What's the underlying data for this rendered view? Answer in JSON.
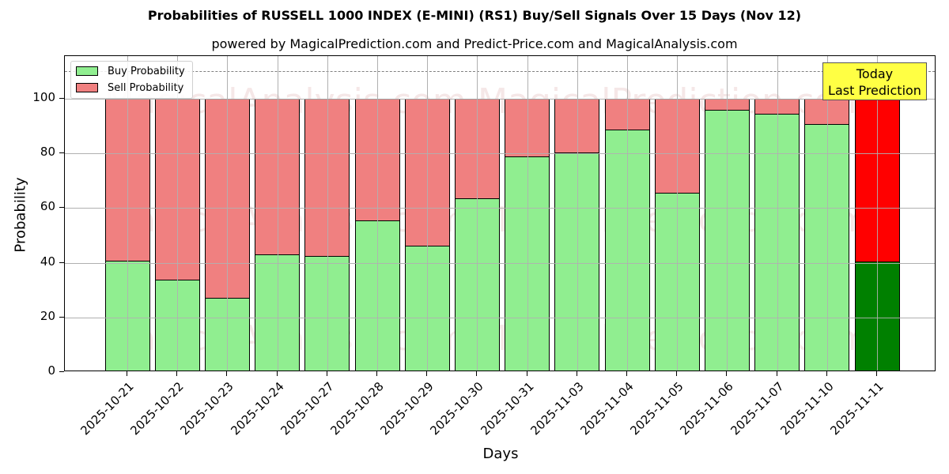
{
  "title": "Probabilities of RUSSELL 1000 INDEX (E-MINI) (RS1) Buy/Sell Signals Over 15 Days (Nov 12)",
  "subtitle": "powered by MagicalPrediction.com and Predict-Price.com and MagicalAnalysis.com",
  "legend": {
    "buy_label": "Buy Probability",
    "sell_label": "Sell Probability"
  },
  "annotation": {
    "line1": "Today",
    "line2": "Last Prediction"
  },
  "axes": {
    "xlabel": "Days",
    "ylabel": "Probability",
    "yticks": [
      "0",
      "20",
      "40",
      "60",
      "80",
      "100"
    ]
  },
  "watermarks": [
    "MagicalAnalysis.com",
    "MagicalPrediction.com"
  ],
  "colors": {
    "buy": "#90ee90",
    "sell": "#f08080",
    "today_buy": "#008000",
    "today_sell": "#ff0000",
    "annotation_bg": "#ffff44"
  },
  "chart_data": {
    "type": "bar",
    "stacked": true,
    "title": "Probabilities of RUSSELL 1000 INDEX (E-MINI) (RS1) Buy/Sell Signals Over 15 Days (Nov 12)",
    "subtitle": "powered by MagicalPrediction.com and Predict-Price.com and MagicalAnalysis.com",
    "xlabel": "Days",
    "ylabel": "Probability",
    "ylim": [
      0,
      115
    ],
    "yticks": [
      0,
      20,
      40,
      60,
      80,
      100
    ],
    "grid": true,
    "legend_position": "upper left",
    "reference_line": {
      "y": 110,
      "style": "dashed",
      "color": "#808080"
    },
    "categories": [
      "2025-10-21",
      "2025-10-22",
      "2025-10-23",
      "2025-10-24",
      "2025-10-27",
      "2025-10-28",
      "2025-10-29",
      "2025-10-30",
      "2025-10-31",
      "2025-11-03",
      "2025-11-04",
      "2025-11-05",
      "2025-11-06",
      "2025-11-07",
      "2025-11-10",
      "2025-11-11"
    ],
    "series": [
      {
        "name": "Buy Probability",
        "values": [
          40.8,
          33.7,
          27.3,
          43.2,
          42.6,
          55.4,
          46.1,
          63.7,
          78.8,
          80.3,
          88.8,
          65.7,
          95.9,
          94.6,
          90.8,
          40.5
        ]
      },
      {
        "name": "Sell Probability",
        "values": [
          59.2,
          66.3,
          72.7,
          56.8,
          57.4,
          44.6,
          53.9,
          36.3,
          21.2,
          19.7,
          11.2,
          34.3,
          4.1,
          5.4,
          9.2,
          59.5
        ]
      }
    ],
    "annotations": [
      {
        "text": "Today\nLast Prediction",
        "category": "2025-11-11"
      }
    ]
  }
}
